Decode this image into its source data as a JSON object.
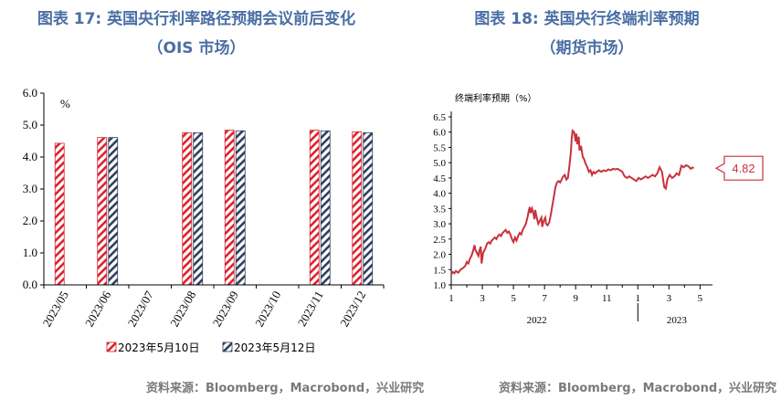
{
  "left": {
    "title": "图表 17: 英国央行利率路径预期会议前后变化",
    "subtitle": "（OIS 市场）",
    "source": "资料来源：Bloomberg，Macrobond，兴业研究",
    "chart_data": {
      "type": "bar",
      "unit_label": "%",
      "categories": [
        "2023/05",
        "2023/06",
        "2023/07",
        "2023/08",
        "2023/09",
        "2023/10",
        "2023/11",
        "2023/12"
      ],
      "series": [
        {
          "name": "2023年5月10日",
          "values": [
            4.43,
            4.61,
            null,
            4.76,
            4.84,
            null,
            4.84,
            4.79
          ],
          "color": "#d9222f",
          "pattern": "red-hatch"
        },
        {
          "name": "2023年5月12日",
          "values": [
            null,
            4.61,
            null,
            4.76,
            4.82,
            null,
            4.82,
            4.76
          ],
          "color": "#2e3f5c",
          "pattern": "navy-hatch"
        }
      ],
      "ylim": [
        0,
        6
      ],
      "yticks": [
        "0.0",
        "1.0",
        "2.0",
        "3.0",
        "4.0",
        "5.0",
        "6.0"
      ],
      "grid": false,
      "legend_position": "bottom"
    }
  },
  "right": {
    "title": "图表 18: 英国央行终端利率预期",
    "subtitle": "（期货市场）",
    "source": "资料来源：Bloomberg，Macrobond，兴业研究",
    "chart_data": {
      "type": "line",
      "series_label": "终端利率预期（%）",
      "callout_value": "4.82",
      "color": "#c8323c",
      "ylim": [
        1.0,
        6.5
      ],
      "yticks": [
        "1.0",
        "1.5",
        "2.0",
        "2.5",
        "3.0",
        "3.5",
        "4.0",
        "4.5",
        "5.0",
        "5.5",
        "6.0",
        "6.5"
      ],
      "xtick_labels": [
        "1",
        "3",
        "5",
        "7",
        "9",
        "11",
        "1",
        "3",
        "5"
      ],
      "year_labels": [
        "2022",
        "2023"
      ],
      "x_month_start": "2022-01",
      "points": [
        [
          0.0,
          1.35
        ],
        [
          0.1,
          1.42
        ],
        [
          0.2,
          1.38
        ],
        [
          0.3,
          1.45
        ],
        [
          0.45,
          1.4
        ],
        [
          0.6,
          1.5
        ],
        [
          0.75,
          1.55
        ],
        [
          0.9,
          1.62
        ],
        [
          1.0,
          1.75
        ],
        [
          1.1,
          1.7
        ],
        [
          1.2,
          1.85
        ],
        [
          1.3,
          1.95
        ],
        [
          1.4,
          2.1
        ],
        [
          1.5,
          2.3
        ],
        [
          1.55,
          2.15
        ],
        [
          1.65,
          2.05
        ],
        [
          1.75,
          1.95
        ],
        [
          1.8,
          2.1
        ],
        [
          1.9,
          2.25
        ],
        [
          1.95,
          1.7
        ],
        [
          2.05,
          2.05
        ],
        [
          2.2,
          2.2
        ],
        [
          2.3,
          2.35
        ],
        [
          2.4,
          2.4
        ],
        [
          2.5,
          2.35
        ],
        [
          2.6,
          2.45
        ],
        [
          2.7,
          2.5
        ],
        [
          2.8,
          2.55
        ],
        [
          2.9,
          2.5
        ],
        [
          3.0,
          2.6
        ],
        [
          3.1,
          2.65
        ],
        [
          3.2,
          2.6
        ],
        [
          3.3,
          2.7
        ],
        [
          3.4,
          2.75
        ],
        [
          3.5,
          2.8
        ],
        [
          3.6,
          2.7
        ],
        [
          3.7,
          2.75
        ],
        [
          3.8,
          2.65
        ],
        [
          3.9,
          2.5
        ],
        [
          4.0,
          2.4
        ],
        [
          4.1,
          2.55
        ],
        [
          4.2,
          2.45
        ],
        [
          4.3,
          2.6
        ],
        [
          4.4,
          2.7
        ],
        [
          4.5,
          2.65
        ],
        [
          4.6,
          2.8
        ],
        [
          4.7,
          2.9
        ],
        [
          4.8,
          3.0
        ],
        [
          4.9,
          3.2
        ],
        [
          5.0,
          3.45
        ],
        [
          5.05,
          3.55
        ],
        [
          5.1,
          3.35
        ],
        [
          5.2,
          3.5
        ],
        [
          5.3,
          3.3
        ],
        [
          5.35,
          3.15
        ],
        [
          5.4,
          3.45
        ],
        [
          5.5,
          3.2
        ],
        [
          5.6,
          3.0
        ],
        [
          5.7,
          3.1
        ],
        [
          5.8,
          3.2
        ],
        [
          5.85,
          2.9
        ],
        [
          5.95,
          3.1
        ],
        [
          6.05,
          3.2
        ],
        [
          6.1,
          3.0
        ],
        [
          6.2,
          2.95
        ],
        [
          6.3,
          3.05
        ],
        [
          6.4,
          3.3
        ],
        [
          6.5,
          3.6
        ],
        [
          6.6,
          3.9
        ],
        [
          6.7,
          4.2
        ],
        [
          6.8,
          4.35
        ],
        [
          6.9,
          4.4
        ],
        [
          7.0,
          4.35
        ],
        [
          7.1,
          4.45
        ],
        [
          7.2,
          4.55
        ],
        [
          7.3,
          4.6
        ],
        [
          7.4,
          4.45
        ],
        [
          7.5,
          4.5
        ],
        [
          7.6,
          4.9
        ],
        [
          7.7,
          5.4
        ],
        [
          7.75,
          5.8
        ],
        [
          7.8,
          6.05
        ],
        [
          7.9,
          6.0
        ],
        [
          8.0,
          5.7
        ],
        [
          8.05,
          5.95
        ],
        [
          8.1,
          5.6
        ],
        [
          8.2,
          5.85
        ],
        [
          8.25,
          5.4
        ],
        [
          8.35,
          5.55
        ],
        [
          8.45,
          5.2
        ],
        [
          8.55,
          5.1
        ],
        [
          8.65,
          4.95
        ],
        [
          8.75,
          4.85
        ],
        [
          8.85,
          4.7
        ],
        [
          8.95,
          4.75
        ],
        [
          9.05,
          4.6
        ],
        [
          9.15,
          4.7
        ],
        [
          9.25,
          4.65
        ],
        [
          9.35,
          4.7
        ],
        [
          9.5,
          4.75
        ],
        [
          9.65,
          4.7
        ],
        [
          9.8,
          4.75
        ],
        [
          9.95,
          4.72
        ],
        [
          10.1,
          4.78
        ],
        [
          10.25,
          4.75
        ],
        [
          10.4,
          4.8
        ],
        [
          10.55,
          4.78
        ],
        [
          10.7,
          4.8
        ],
        [
          10.85,
          4.75
        ],
        [
          11.0,
          4.7
        ],
        [
          11.15,
          4.55
        ],
        [
          11.3,
          4.5
        ],
        [
          11.45,
          4.55
        ],
        [
          11.6,
          4.5
        ],
        [
          11.75,
          4.45
        ],
        [
          11.9,
          4.4
        ],
        [
          12.05,
          4.5
        ],
        [
          12.2,
          4.45
        ],
        [
          12.35,
          4.5
        ],
        [
          12.5,
          4.55
        ],
        [
          12.65,
          4.5
        ],
        [
          12.8,
          4.55
        ],
        [
          12.95,
          4.6
        ],
        [
          13.1,
          4.55
        ],
        [
          13.25,
          4.65
        ],
        [
          13.4,
          4.85
        ],
        [
          13.55,
          4.7
        ],
        [
          13.7,
          4.2
        ],
        [
          13.8,
          4.15
        ],
        [
          13.9,
          4.45
        ],
        [
          14.05,
          4.6
        ],
        [
          14.2,
          4.5
        ],
        [
          14.35,
          4.55
        ],
        [
          14.5,
          4.65
        ],
        [
          14.65,
          4.6
        ],
        [
          14.8,
          4.9
        ],
        [
          14.95,
          4.85
        ],
        [
          15.1,
          4.92
        ],
        [
          15.25,
          4.88
        ],
        [
          15.4,
          4.8
        ],
        [
          15.5,
          4.84
        ],
        [
          15.6,
          4.82
        ]
      ]
    }
  }
}
